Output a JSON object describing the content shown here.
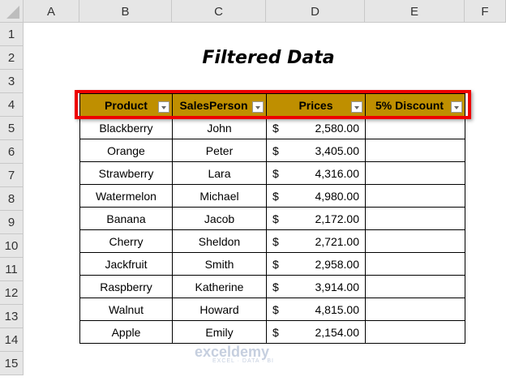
{
  "columns": [
    "A",
    "B",
    "C",
    "D",
    "E",
    "F"
  ],
  "rows": [
    "1",
    "2",
    "3",
    "4",
    "5",
    "6",
    "7",
    "8",
    "9",
    "10",
    "11",
    "12",
    "13",
    "14",
    "15"
  ],
  "title": "Filtered Data",
  "headers": [
    "Product",
    "SalesPerson",
    "Prices",
    "5% Discount"
  ],
  "data": [
    [
      "Blackberry",
      "John",
      "$",
      "2,580.00"
    ],
    [
      "Orange",
      "Peter",
      "$",
      "3,405.00"
    ],
    [
      "Strawberry",
      "Lara",
      "$",
      "4,316.00"
    ],
    [
      "Watermelon",
      "Michael",
      "$",
      "4,980.00"
    ],
    [
      "Banana",
      "Jacob",
      "$",
      "2,172.00"
    ],
    [
      "Cherry",
      "Sheldon",
      "$",
      "2,721.00"
    ],
    [
      "Jackfruit",
      "Smith",
      "$",
      "2,958.00"
    ],
    [
      "Raspberry",
      "Katherine",
      "$",
      "3,914.00"
    ],
    [
      "Walnut",
      "Howard",
      "$",
      "4,815.00"
    ],
    [
      "Apple",
      "Emily",
      "$",
      "2,154.00"
    ]
  ],
  "watermark": {
    "name": "exceldemy",
    "tagline": "EXCEL · DATA · BI"
  },
  "colors": {
    "header_fill": "#BF8F00",
    "highlight": "#EE0000"
  }
}
